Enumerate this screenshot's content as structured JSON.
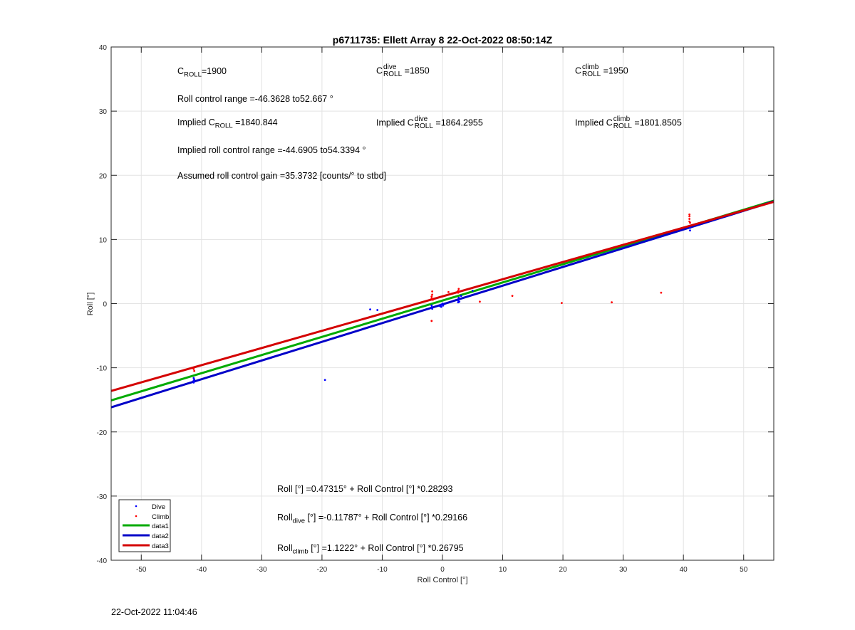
{
  "colors": {
    "dive": "#0000ff",
    "climb": "#ff0000",
    "data1": "#00aa00",
    "data2": "#0000c8",
    "data3": "#d40000"
  },
  "chart_data": {
    "type": "scatter",
    "title": "p6711735: Ellett Array 8 22-Oct-2022 08:50:14Z",
    "xlabel": "Roll Control [°]",
    "ylabel": "Roll [°]",
    "xlim": [
      -55,
      55
    ],
    "ylim": [
      -40,
      40
    ],
    "xticks": [
      -50,
      -40,
      -30,
      -20,
      -10,
      0,
      10,
      20,
      30,
      40,
      50
    ],
    "yticks": [
      -40,
      -30,
      -20,
      -10,
      0,
      10,
      20,
      30,
      40
    ],
    "grid": true,
    "legend_position": "bottom-left",
    "series": [
      {
        "name": "Dive",
        "kind": "points",
        "color": "#0000ff",
        "x": [
          -41.3,
          -41.3,
          -41.3,
          -41.2,
          -19.5,
          -12,
          -10.8,
          -1.8,
          -1.8,
          -1.7,
          -0.4,
          -0.3,
          -0.2,
          0,
          0.1,
          2.6,
          2.6,
          2.7,
          2.7,
          2.8,
          3.1,
          5.0,
          41.1,
          41.1
        ],
        "y": [
          -11.6,
          -12.0,
          -12.3,
          -11.8,
          -11.9,
          -0.9,
          -1.0,
          -0.6,
          -0.3,
          -0.8,
          -0.4,
          -0.2,
          -0.5,
          0,
          -0.3,
          0.2,
          0.5,
          0.7,
          0.9,
          0.3,
          1.2,
          2.0,
          11.8,
          11.4
        ]
      },
      {
        "name": "Climb",
        "kind": "points",
        "color": "#ff0000",
        "x": [
          -41.3,
          -41.2,
          -1.8,
          -1.8,
          -1.7,
          -1.7,
          -1.6,
          -1.8,
          1.0,
          2.6,
          2.6,
          2.7,
          2.7,
          6.2,
          11.6,
          19.8,
          28.1,
          36.3,
          41.0,
          41.0,
          41.0,
          41.0,
          41.1
        ],
        "y": [
          -10.2,
          -10.5,
          0.8,
          1.1,
          1.4,
          1.9,
          0.6,
          -2.7,
          1.8,
          1.7,
          2.0,
          2.3,
          1.9,
          0.3,
          1.2,
          0.1,
          0.2,
          1.7,
          12.8,
          13.2,
          13.6,
          13.9,
          12.6
        ]
      },
      {
        "name": "data1",
        "kind": "line",
        "color": "#00aa00",
        "intercept": 0.47315,
        "slope": 0.28293
      },
      {
        "name": "data2",
        "kind": "line",
        "color": "#0000c8",
        "intercept": -0.11787,
        "slope": 0.29166
      },
      {
        "name": "data3",
        "kind": "line",
        "color": "#d40000",
        "intercept": 1.1222,
        "slope": 0.26795
      }
    ]
  },
  "annotations": {
    "c_roll_label": "C",
    "c_roll_sub": "ROLL",
    "c_roll_value": "=1900",
    "c_dive_label": "C",
    "c_dive_sup": "dive",
    "c_dive_sub": "ROLL",
    "c_dive_value": "=1850",
    "c_climb_label": "C",
    "c_climb_sup": "climb",
    "c_climb_sub": "ROLL",
    "c_climb_value": "=1950",
    "roll_range": "Roll control range =-46.3628 to52.667 °",
    "implied_prefix": "Implied C",
    "implied_sub": "ROLL",
    "implied_value": "=1840.844",
    "implied_dive_sup": "dive",
    "implied_dive_sub": "ROLL",
    "implied_dive_value": "=1864.2955",
    "implied_climb_sup": "climb",
    "implied_climb_sub": "ROLL",
    "implied_climb_value": "=1801.8505",
    "implied_range": "Implied roll control range =-44.6905 to54.3394 °",
    "gain": "Assumed roll control gain =35.3732 [counts/° to stbd]",
    "eq_all": "Roll [°] =0.47315° + Roll Control [°] *0.28293",
    "eq_dive_prefix": "Roll",
    "eq_dive_sub": "dive",
    "eq_dive_rest": " [°] =-0.11787° + Roll Control [°] *0.29166",
    "eq_climb_prefix": "Roll",
    "eq_climb_sub": "climb",
    "eq_climb_rest": " [°] =1.1222° + Roll Control [°] *0.26795"
  },
  "footer": {
    "timestamp": "22-Oct-2022 11:04:46"
  }
}
